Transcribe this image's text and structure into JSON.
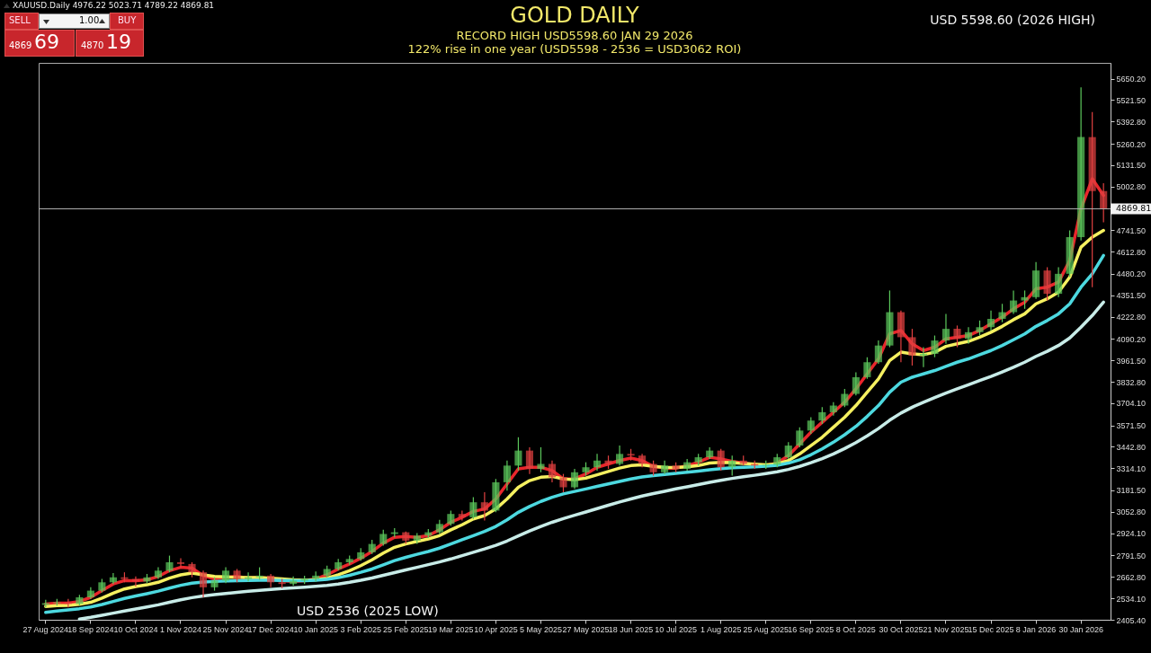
{
  "chart_data": {
    "type": "candlestick",
    "title": "GOLD DAILY",
    "subtitle": "RECORD HIGH USD5598.60   JAN 29 2026\n122% rise in one year  (USD5598 - 2536  =  USD3062  ROI)",
    "annotations": [
      "XAUUSD.Daily 4976.22 5023.71 4789.22 4869.81",
      "SELL",
      "1.00",
      "BUY",
      "4869",
      "69",
      "4870",
      "19",
      "USD 5598.60  (2026 HIGH)",
      "USD 2536 (2025 LOW)"
    ],
    "categories": [
      "27 Aug 2024",
      null,
      null,
      null,
      "18 Sep 2024",
      null,
      null,
      null,
      "10 Oct 2024",
      null,
      null,
      null,
      "1 Nov 2024",
      null,
      null,
      null,
      "25 Nov 2024",
      null,
      null,
      null,
      "17 Dec 2024",
      null,
      null,
      null,
      "10 Jan 2025",
      null,
      null,
      null,
      "3 Feb 2025",
      null,
      null,
      null,
      "25 Feb 2025",
      null,
      null,
      null,
      "19 Mar 2025",
      null,
      null,
      null,
      "10 Apr 2025",
      null,
      null,
      null,
      "5 May 2025",
      null,
      null,
      null,
      "27 May 2025",
      null,
      null,
      null,
      "18 Jun 2025",
      null,
      null,
      null,
      "10 Jul 2025",
      null,
      null,
      null,
      "1 Aug 2025",
      null,
      null,
      null,
      "25 Aug 2025",
      null,
      null,
      null,
      "16 Sep 2025",
      null,
      null,
      null,
      "8 Oct 2025",
      null,
      null,
      null,
      "30 Oct 2025",
      null,
      null,
      null,
      "21 Nov 2025",
      null,
      null,
      null,
      "15 Dec 2025",
      null,
      null,
      null,
      "8 Jan 2026",
      null,
      null,
      null,
      "30 Jan 2026",
      null,
      null
    ],
    "ohlc": [
      [
        2495,
        2525,
        2480,
        2505
      ],
      [
        2505,
        2530,
        2490,
        2510
      ],
      [
        2510,
        2530,
        2480,
        2500
      ],
      [
        2500,
        2555,
        2490,
        2540
      ],
      [
        2540,
        2600,
        2530,
        2580
      ],
      [
        2580,
        2650,
        2570,
        2630
      ],
      [
        2630,
        2685,
        2620,
        2660
      ],
      [
        2660,
        2690,
        2630,
        2650
      ],
      [
        2650,
        2665,
        2605,
        2635
      ],
      [
        2635,
        2680,
        2625,
        2660
      ],
      [
        2660,
        2720,
        2650,
        2700
      ],
      [
        2700,
        2790,
        2690,
        2750
      ],
      [
        2750,
        2775,
        2715,
        2740
      ],
      [
        2740,
        2750,
        2660,
        2690
      ],
      [
        2690,
        2700,
        2540,
        2600
      ],
      [
        2600,
        2660,
        2580,
        2640
      ],
      [
        2640,
        2720,
        2625,
        2700
      ],
      [
        2700,
        2710,
        2630,
        2650
      ],
      [
        2650,
        2690,
        2635,
        2660
      ],
      [
        2660,
        2720,
        2645,
        2670
      ],
      [
        2670,
        2680,
        2600,
        2630
      ],
      [
        2630,
        2650,
        2595,
        2620
      ],
      [
        2620,
        2665,
        2610,
        2640
      ],
      [
        2640,
        2670,
        2620,
        2650
      ],
      [
        2650,
        2695,
        2635,
        2670
      ],
      [
        2670,
        2730,
        2660,
        2710
      ],
      [
        2710,
        2770,
        2700,
        2750
      ],
      [
        2750,
        2790,
        2735,
        2770
      ],
      [
        2770,
        2835,
        2760,
        2810
      ],
      [
        2810,
        2885,
        2800,
        2860
      ],
      [
        2860,
        2945,
        2850,
        2920
      ],
      [
        2920,
        2955,
        2900,
        2930
      ],
      [
        2930,
        2935,
        2860,
        2880
      ],
      [
        2880,
        2925,
        2860,
        2910
      ],
      [
        2910,
        2950,
        2895,
        2930
      ],
      [
        2930,
        3005,
        2920,
        2980
      ],
      [
        2980,
        3060,
        2970,
        3040
      ],
      [
        3040,
        3060,
        3000,
        3020
      ],
      [
        3020,
        3140,
        3010,
        3110
      ],
      [
        3110,
        3170,
        3000,
        3060
      ],
      [
        3060,
        3250,
        3050,
        3230
      ],
      [
        3230,
        3360,
        3180,
        3330
      ],
      [
        3330,
        3500,
        3300,
        3420
      ],
      [
        3420,
        3440,
        3280,
        3310
      ],
      [
        3310,
        3440,
        3290,
        3340
      ],
      [
        3340,
        3360,
        3230,
        3260
      ],
      [
        3260,
        3280,
        3170,
        3200
      ],
      [
        3200,
        3310,
        3190,
        3290
      ],
      [
        3290,
        3350,
        3270,
        3320
      ],
      [
        3320,
        3400,
        3300,
        3360
      ],
      [
        3360,
        3390,
        3310,
        3340
      ],
      [
        3340,
        3450,
        3330,
        3400
      ],
      [
        3400,
        3430,
        3360,
        3390
      ],
      [
        3390,
        3400,
        3320,
        3340
      ],
      [
        3340,
        3360,
        3270,
        3290
      ],
      [
        3290,
        3360,
        3280,
        3330
      ],
      [
        3330,
        3350,
        3290,
        3310
      ],
      [
        3310,
        3370,
        3300,
        3350
      ],
      [
        3350,
        3400,
        3330,
        3380
      ],
      [
        3380,
        3440,
        3370,
        3420
      ],
      [
        3420,
        3430,
        3300,
        3320
      ],
      [
        3320,
        3390,
        3270,
        3360
      ],
      [
        3360,
        3390,
        3330,
        3340
      ],
      [
        3340,
        3360,
        3310,
        3330
      ],
      [
        3330,
        3360,
        3310,
        3335
      ],
      [
        3335,
        3400,
        3320,
        3380
      ],
      [
        3380,
        3470,
        3370,
        3450
      ],
      [
        3450,
        3560,
        3440,
        3540
      ],
      [
        3540,
        3620,
        3520,
        3600
      ],
      [
        3600,
        3680,
        3580,
        3650
      ],
      [
        3650,
        3710,
        3630,
        3690
      ],
      [
        3690,
        3790,
        3680,
        3760
      ],
      [
        3760,
        3890,
        3750,
        3860
      ],
      [
        3860,
        3980,
        3850,
        3950
      ],
      [
        3950,
        4080,
        3940,
        4050
      ],
      [
        4050,
        4380,
        4040,
        4250
      ],
      [
        4250,
        4260,
        3950,
        4100
      ],
      [
        4100,
        4150,
        3930,
        3990
      ],
      [
        3990,
        4040,
        3920,
        4000
      ],
      [
        4000,
        4110,
        3980,
        4080
      ],
      [
        4080,
        4240,
        4060,
        4150
      ],
      [
        4150,
        4170,
        4040,
        4090
      ],
      [
        4090,
        4160,
        4060,
        4130
      ],
      [
        4130,
        4200,
        4110,
        4160
      ],
      [
        4160,
        4260,
        4140,
        4210
      ],
      [
        4210,
        4300,
        4190,
        4250
      ],
      [
        4250,
        4380,
        4240,
        4320
      ],
      [
        4320,
        4380,
        4270,
        4340
      ],
      [
        4340,
        4550,
        4330,
        4500
      ],
      [
        4500,
        4520,
        4320,
        4360
      ],
      [
        4360,
        4520,
        4340,
        4480
      ],
      [
        4480,
        4740,
        4460,
        4700
      ],
      [
        4700,
        5598.6,
        4680,
        5300
      ],
      [
        5300,
        5450,
        4400,
        4976.22
      ],
      [
        4976.22,
        5023.71,
        4789.22,
        4869.81
      ]
    ],
    "series": [
      {
        "type": "line",
        "color": "#e8262b",
        "values": [
          2500,
          2505,
          2505,
          2515,
          2540,
          2580,
          2620,
          2640,
          2640,
          2645,
          2665,
          2700,
          2720,
          2715,
          2670,
          2650,
          2660,
          2665,
          2655,
          2660,
          2650,
          2640,
          2635,
          2640,
          2650,
          2675,
          2710,
          2740,
          2775,
          2815,
          2865,
          2900,
          2905,
          2900,
          2910,
          2945,
          2990,
          3020,
          3055,
          3070,
          3130,
          3220,
          3310,
          3320,
          3320,
          3300,
          3250,
          3250,
          3280,
          3320,
          3340,
          3360,
          3375,
          3360,
          3325,
          3315,
          3315,
          3330,
          3350,
          3380,
          3370,
          3355,
          3345,
          3335,
          3330,
          3345,
          3390,
          3460,
          3530,
          3590,
          3650,
          3710,
          3790,
          3880,
          3970,
          4120,
          4140,
          4060,
          4020,
          4040,
          4090,
          4100,
          4110,
          4140,
          4180,
          4220,
          4270,
          4310,
          4390,
          4400,
          4430,
          4560,
          4870,
          5050,
          4950
        ]
      },
      {
        "type": "line",
        "color": "#f5f060",
        "values": [
          2485,
          2490,
          2492,
          2498,
          2510,
          2535,
          2565,
          2590,
          2605,
          2615,
          2630,
          2655,
          2675,
          2685,
          2675,
          2665,
          2662,
          2660,
          2658,
          2658,
          2655,
          2650,
          2645,
          2643,
          2645,
          2655,
          2675,
          2700,
          2730,
          2765,
          2805,
          2840,
          2860,
          2875,
          2890,
          2910,
          2945,
          2975,
          3010,
          3030,
          3070,
          3130,
          3200,
          3240,
          3260,
          3265,
          3250,
          3245,
          3255,
          3275,
          3295,
          3315,
          3330,
          3335,
          3325,
          3320,
          3318,
          3322,
          3330,
          3345,
          3350,
          3348,
          3342,
          3338,
          3335,
          3340,
          3360,
          3400,
          3450,
          3500,
          3560,
          3620,
          3690,
          3770,
          3850,
          3960,
          4010,
          4000,
          3995,
          4010,
          4045,
          4060,
          4075,
          4100,
          4130,
          4165,
          4205,
          4240,
          4300,
          4330,
          4370,
          4460,
          4640,
          4700,
          4740
        ]
      },
      {
        "type": "line",
        "color": "#4dd9e0",
        "values": [
          2450,
          2458,
          2465,
          2472,
          2482,
          2497,
          2515,
          2533,
          2548,
          2562,
          2577,
          2595,
          2612,
          2625,
          2632,
          2635,
          2638,
          2640,
          2641,
          2642,
          2642,
          2641,
          2640,
          2640,
          2642,
          2648,
          2658,
          2672,
          2690,
          2710,
          2735,
          2760,
          2780,
          2798,
          2815,
          2835,
          2860,
          2885,
          2910,
          2935,
          2965,
          3005,
          3050,
          3085,
          3115,
          3140,
          3160,
          3175,
          3190,
          3205,
          3220,
          3235,
          3250,
          3262,
          3270,
          3277,
          3283,
          3290,
          3297,
          3305,
          3312,
          3317,
          3320,
          3323,
          3326,
          3332,
          3345,
          3365,
          3395,
          3430,
          3470,
          3515,
          3565,
          3625,
          3690,
          3770,
          3830,
          3860,
          3880,
          3900,
          3925,
          3950,
          3970,
          3995,
          4020,
          4050,
          4085,
          4120,
          4165,
          4200,
          4240,
          4300,
          4400,
          4480,
          4590
        ]
      },
      {
        "type": "line",
        "color": "#c8ece8",
        "values": [
          null,
          null,
          null,
          2410,
          2420,
          2432,
          2445,
          2458,
          2470,
          2482,
          2495,
          2510,
          2525,
          2538,
          2548,
          2556,
          2563,
          2570,
          2576,
          2582,
          2587,
          2592,
          2597,
          2601,
          2606,
          2612,
          2620,
          2630,
          2642,
          2656,
          2672,
          2688,
          2704,
          2720,
          2736,
          2752,
          2770,
          2790,
          2810,
          2830,
          2852,
          2878,
          2908,
          2938,
          2965,
          2990,
          3012,
          3032,
          3052,
          3072,
          3092,
          3112,
          3130,
          3147,
          3162,
          3176,
          3190,
          3203,
          3216,
          3230,
          3242,
          3253,
          3263,
          3272,
          3282,
          3293,
          3307,
          3325,
          3347,
          3372,
          3400,
          3432,
          3468,
          3508,
          3552,
          3602,
          3645,
          3680,
          3710,
          3738,
          3765,
          3790,
          3815,
          3840,
          3865,
          3892,
          3920,
          3950,
          3985,
          4015,
          4050,
          4095,
          4160,
          4230,
          4310
        ]
      }
    ],
    "ylim": [
      2405.4,
      5745
    ],
    "yticks": [
      {
        "value": 2405.4,
        "label": "2405.40"
      },
      {
        "value": 2534.1,
        "label": "2534.10"
      },
      {
        "value": 2662.8,
        "label": "2662.80"
      },
      {
        "value": 2791.5,
        "label": "2791.50"
      },
      {
        "value": 2924.1,
        "label": "2924.10"
      },
      {
        "value": 3052.8,
        "label": "3052.80"
      },
      {
        "value": 3181.5,
        "label": "3181.50"
      },
      {
        "value": 3314.1,
        "label": "3314.10"
      },
      {
        "value": 3442.8,
        "label": "3442.80"
      },
      {
        "value": 3571.5,
        "label": "3571.50"
      },
      {
        "value": 3704.1,
        "label": "3704.10"
      },
      {
        "value": 3832.8,
        "label": "3832.80"
      },
      {
        "value": 3961.5,
        "label": "3961.50"
      },
      {
        "value": 4090.2,
        "label": "4090.20"
      },
      {
        "value": 4222.8,
        "label": "4222.80"
      },
      {
        "value": 4351.5,
        "label": "4351.50"
      },
      {
        "value": 4480.2,
        "label": "4480.20"
      },
      {
        "value": 4612.8,
        "label": "4612.80"
      },
      {
        "value": 4741.5,
        "label": "4741.50"
      },
      {
        "value": 5002.8,
        "label": "5002.80"
      },
      {
        "value": 5131.5,
        "label": "5131.50"
      },
      {
        "value": 5260.2,
        "label": "5260.20"
      },
      {
        "value": 5392.8,
        "label": "5392.80"
      },
      {
        "value": 5521.5,
        "label": "5521.50"
      },
      {
        "value": 5650.2,
        "label": "5650.20"
      }
    ],
    "ref_lines": [
      {
        "axis": "y",
        "value": 4869.81,
        "label": "4869.81",
        "color": "#b0b0b0"
      }
    ],
    "grid": false
  }
}
